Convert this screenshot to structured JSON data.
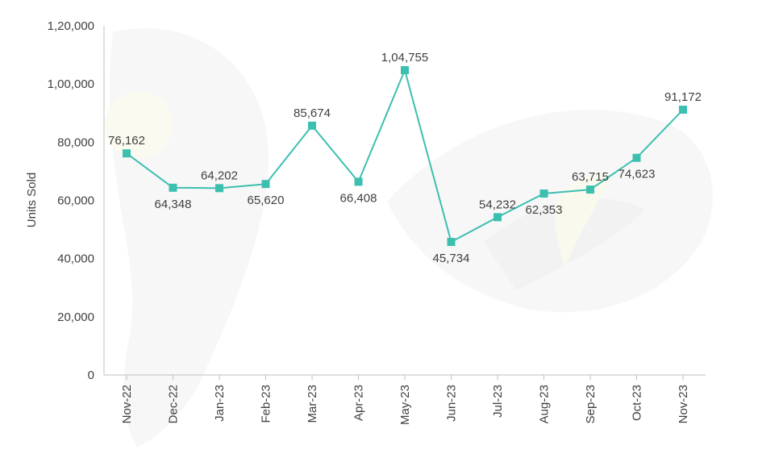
{
  "chart_data": {
    "type": "line",
    "title": "",
    "xlabel": "",
    "ylabel": "Units Sold",
    "ylim": [
      0,
      120000
    ],
    "yticks": [
      0,
      20000,
      40000,
      60000,
      80000,
      100000,
      120000
    ],
    "ytick_labels": [
      "0",
      "20,000",
      "40,000",
      "60,000",
      "80,000",
      "1,00,000",
      "1,20,000"
    ],
    "categories": [
      "Nov-22",
      "Dec-22",
      "Jan-23",
      "Feb-23",
      "Mar-23",
      "Apr-23",
      "May-23",
      "Jun-23",
      "Jul-23",
      "Aug-23",
      "Sep-23",
      "Oct-23",
      "Nov-23"
    ],
    "series": [
      {
        "values": [
          76162,
          64348,
          64202,
          65620,
          85674,
          66408,
          104755,
          45734,
          54232,
          62353,
          63715,
          74623,
          91172
        ],
        "labels": [
          "76,162",
          "64,348",
          "64,202",
          "65,620",
          "85,674",
          "66,408",
          "1,04,755",
          "45,734",
          "54,232",
          "62,353",
          "63,715",
          "74,623",
          "91,172"
        ],
        "color": "#3dbfb0"
      }
    ],
    "grid": false,
    "legend": "none"
  }
}
